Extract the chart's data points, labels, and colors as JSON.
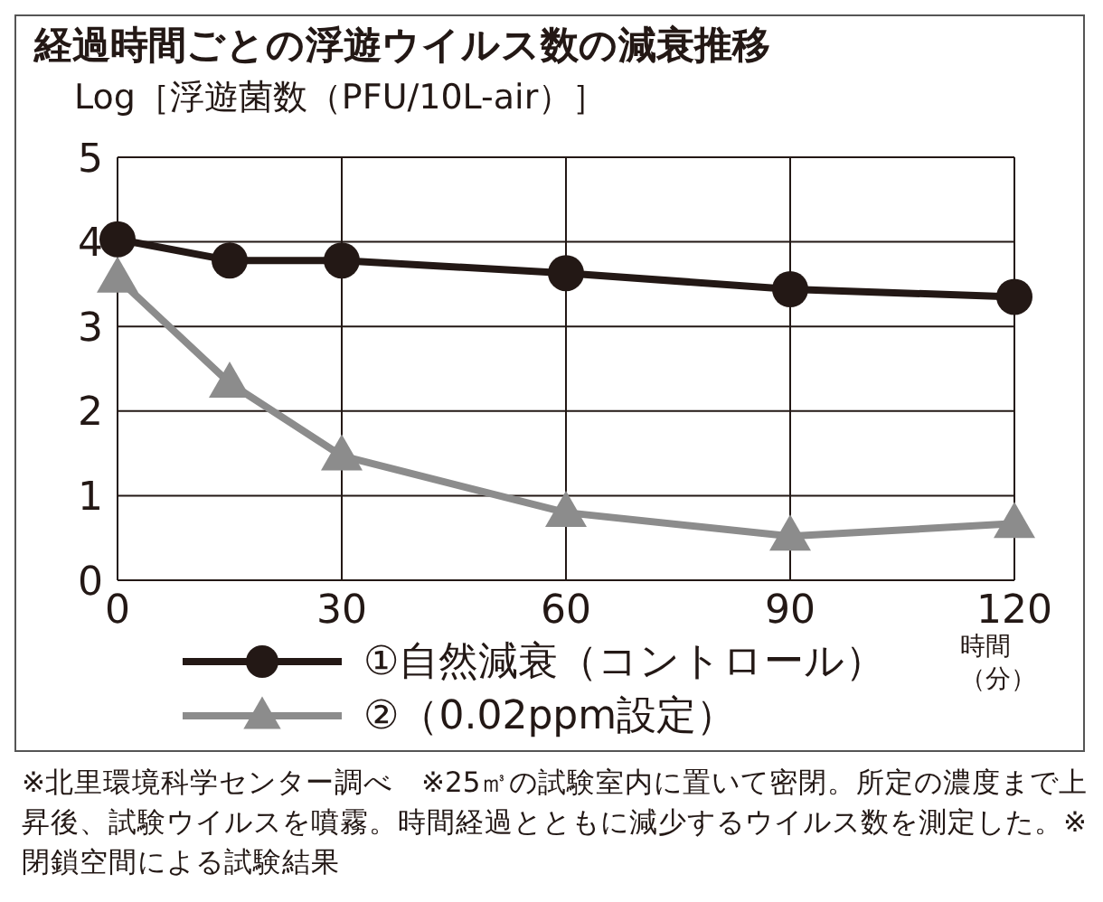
{
  "chart_data": {
    "type": "line",
    "title": "経過時間ごとの浮遊ウイルス数の減衰推移",
    "ylabel": "Log［浮遊菌数（PFU/10L-air）］",
    "xlabel": "時間（分）",
    "x": [
      0,
      15,
      30,
      60,
      90,
      120
    ],
    "series": [
      {
        "name": "①自然減衰（コントロール）",
        "color": "#231815",
        "marker": "circle",
        "values": [
          4.03,
          3.78,
          3.78,
          3.63,
          3.44,
          3.35
        ]
      },
      {
        "name": "②（0.02ppm設定）",
        "color": "#8c8c8c",
        "marker": "triangle",
        "values": [
          3.57,
          2.33,
          1.47,
          0.8,
          0.52,
          0.67
        ]
      }
    ],
    "xlim": [
      0,
      120
    ],
    "xticks": [
      0,
      30,
      60,
      90,
      120
    ],
    "ylim": [
      0,
      5
    ],
    "yticks": [
      0,
      1,
      2,
      3,
      4,
      5
    ],
    "grid": true,
    "legend": "bottom",
    "line_style": "solid",
    "annotations": [
      "※北里環境科学センター調べ　※25㎥の試験室内に置いて密閉。所定の濃度まで上昇後、試験ウイルスを噴霧。時間経過とともに減少するウイルス数を測定した。※閉鎖空間による試験結果"
    ]
  }
}
